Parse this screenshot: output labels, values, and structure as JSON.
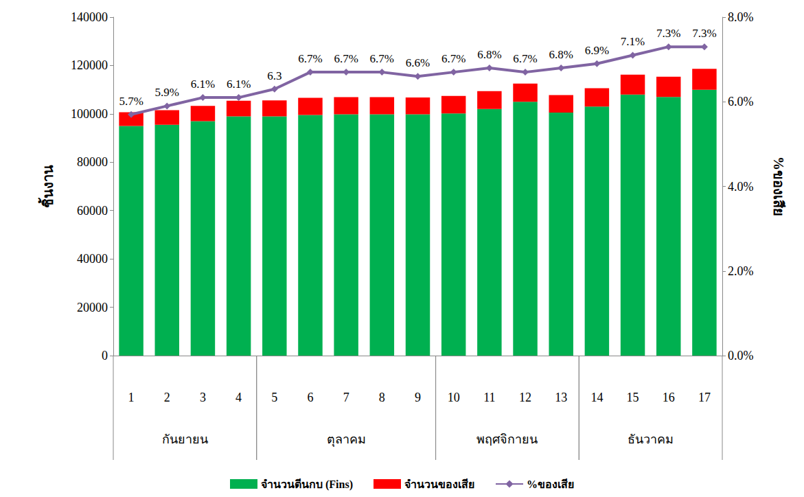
{
  "chart_data": {
    "type": "bar",
    "categories": [
      "1",
      "2",
      "3",
      "4",
      "5",
      "6",
      "7",
      "8",
      "9",
      "10",
      "11",
      "12",
      "13",
      "14",
      "15",
      "16",
      "17"
    ],
    "groups": [
      {
        "label": "กันยายน",
        "from": "1",
        "to": "4"
      },
      {
        "label": "ตุลาคม",
        "from": "5",
        "to": "9"
      },
      {
        "label": "พฤศจิกายน",
        "from": "10",
        "to": "13"
      },
      {
        "label": "ธันวาคม",
        "from": "14",
        "to": "17"
      }
    ],
    "series": [
      {
        "name": "จำนวนตีนกบ (Fins)",
        "type": "bar",
        "color": "#00b050",
        "values": [
          95000,
          95500,
          97000,
          99000,
          99000,
          99500,
          99800,
          99800,
          99800,
          100200,
          102000,
          105000,
          100500,
          103000,
          108000,
          107000,
          110000
        ]
      },
      {
        "name": "จำนวนของเสีย",
        "type": "bar",
        "color": "#ff0000",
        "values": [
          5700,
          6000,
          6300,
          6400,
          6600,
          7100,
          7100,
          7100,
          7000,
          7200,
          7400,
          7500,
          7300,
          7600,
          8200,
          8400,
          8600
        ]
      },
      {
        "name": "%ของเสีย",
        "type": "line",
        "color": "#8064a2",
        "marker": "diamond",
        "axis": "y2",
        "data_labels": true,
        "values": [
          5.7,
          5.9,
          6.1,
          6.1,
          6.3,
          6.7,
          6.7,
          6.7,
          6.6,
          6.7,
          6.8,
          6.7,
          6.8,
          6.9,
          7.1,
          7.3,
          7.3
        ],
        "value_labels": [
          "5.7%",
          "5.9%",
          "6.1%",
          "6.1%",
          "6.3",
          "6.7%",
          "6.7%",
          "6.7%",
          "6.6%",
          "6.7%",
          "6.8%",
          "6.7%",
          "6.8%",
          "6.9%",
          "7.1%",
          "7.3%",
          "7.3%"
        ]
      }
    ],
    "y_label": "ชิ้นงาน",
    "y2_label": "%ของเสีย",
    "ylim": [
      0,
      140000
    ],
    "yticks": [
      0,
      20000,
      40000,
      60000,
      80000,
      100000,
      120000,
      140000
    ],
    "y2lim": [
      0,
      8
    ],
    "y2ticks": [
      {
        "value": 0,
        "label": "0.0%"
      },
      {
        "value": 2,
        "label": "2.0%"
      },
      {
        "value": 4,
        "label": "4.0%"
      },
      {
        "value": 6,
        "label": "6.0%"
      },
      {
        "value": 8,
        "label": "8.0%"
      }
    ],
    "stacked": true,
    "legend": "bottom",
    "grid": false
  }
}
